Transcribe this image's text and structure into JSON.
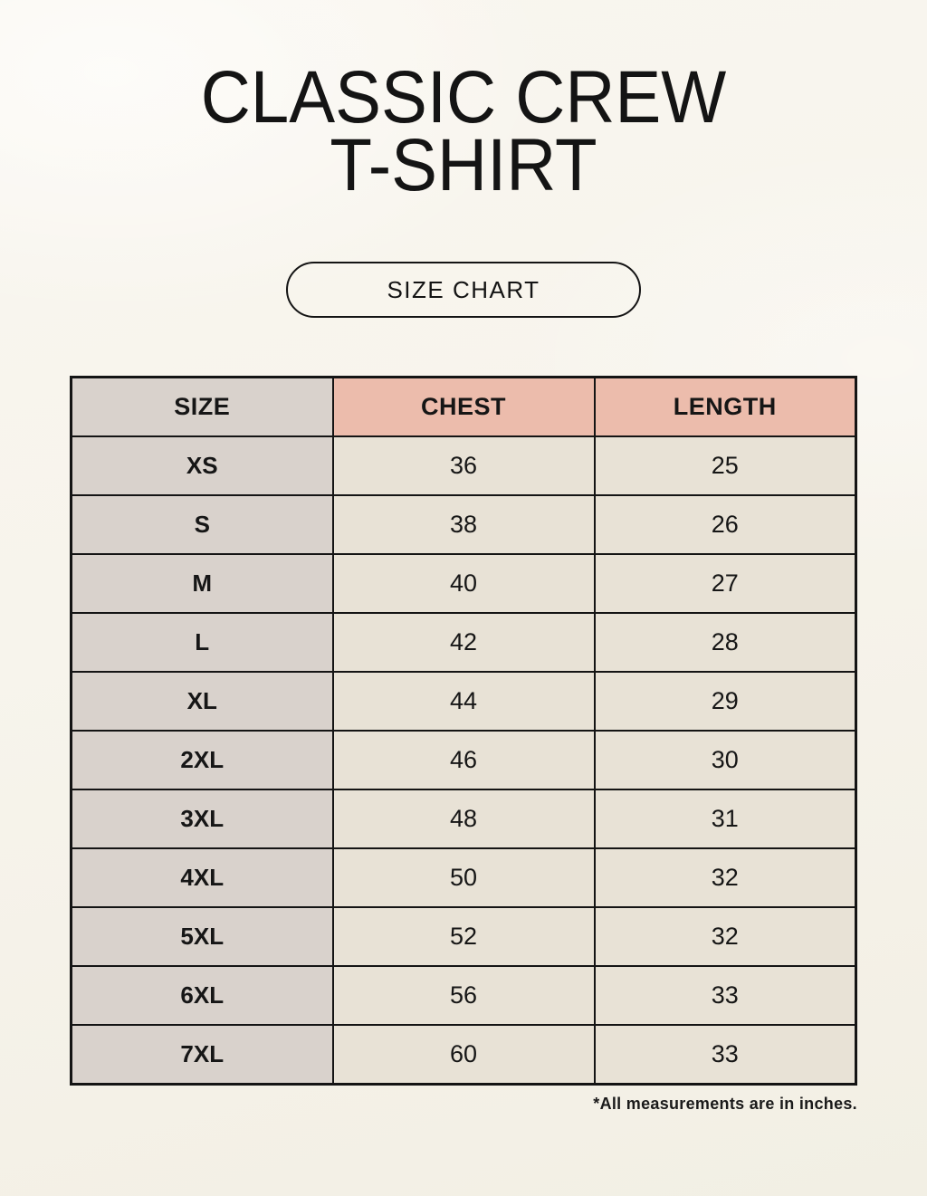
{
  "header": {
    "title_line1": "CLASSIC CREW",
    "title_line2": "T-SHIRT",
    "button_label": "SIZE CHART"
  },
  "footnote": "*All measurements are in inches.",
  "colors": {
    "background": "#f7f4ec",
    "header_accent": "#ecbcac",
    "size_column": "#d9d2cc",
    "cell_beige": "#e8e2d6",
    "border": "#141414",
    "text": "#161616"
  },
  "chart_data": {
    "type": "table",
    "title": "Classic Crew T-Shirt Size Chart",
    "columns": [
      "SIZE",
      "CHEST",
      "LENGTH"
    ],
    "rows": [
      [
        "XS",
        "36",
        "25"
      ],
      [
        "S",
        "38",
        "26"
      ],
      [
        "M",
        "40",
        "27"
      ],
      [
        "L",
        "42",
        "28"
      ],
      [
        "XL",
        "44",
        "29"
      ],
      [
        "2XL",
        "46",
        "30"
      ],
      [
        "3XL",
        "48",
        "31"
      ],
      [
        "4XL",
        "50",
        "32"
      ],
      [
        "5XL",
        "52",
        "32"
      ],
      [
        "6XL",
        "56",
        "33"
      ],
      [
        "7XL",
        "60",
        "33"
      ]
    ],
    "units": "inches"
  }
}
